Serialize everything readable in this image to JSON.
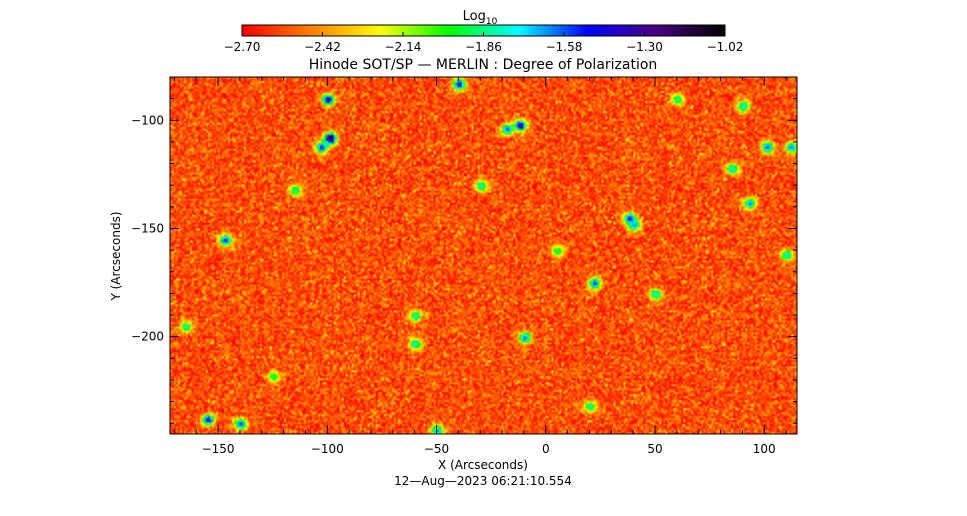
{
  "chart_data": {
    "type": "heatmap",
    "title": "Hinode SOT/SP — MERLIN : Degree of Polarization",
    "xlabel": "X (Arcseconds)",
    "ylabel": "Y (Arcseconds)",
    "timestamp": "12—Aug—2023 06:21:10.554",
    "xlim": [
      -172,
      115
    ],
    "ylim": [
      -245,
      -80
    ],
    "x_ticks": [
      -150,
      -100,
      -50,
      0,
      50,
      100
    ],
    "x_tick_labels": [
      "−150",
      "−100",
      "−50",
      "0",
      "50",
      "100"
    ],
    "y_ticks": [
      -100,
      -150,
      -200
    ],
    "y_tick_labels": [
      "−100",
      "−150",
      "−200"
    ],
    "colorbar": {
      "title_base": "Log",
      "title_sub": "10",
      "range": [
        -2.7,
        -1.02
      ],
      "ticks": [
        -2.7,
        -2.42,
        -2.14,
        -1.86,
        -1.58,
        -1.3,
        -1.02
      ],
      "tick_labels": [
        "−2.70",
        "−2.42",
        "−2.14",
        "−1.86",
        "−1.58",
        "−1.30",
        "−1.02"
      ],
      "colormap": [
        "#ff0000",
        "#ff8000",
        "#ffff00",
        "#00ff00",
        "#00ffff",
        "#0000ff",
        "#4b0082",
        "#000000"
      ]
    },
    "background_level": -2.56,
    "features": [
      {
        "x": -100,
        "y": -90,
        "value": -1.3
      },
      {
        "x": -99,
        "y": -108,
        "value": -1.05
      },
      {
        "x": -103,
        "y": -112,
        "value": -1.45
      },
      {
        "x": -40,
        "y": -83,
        "value": -1.4
      },
      {
        "x": -12,
        "y": -102,
        "value": -1.3
      },
      {
        "x": -18,
        "y": -104,
        "value": -1.55
      },
      {
        "x": -147,
        "y": -155,
        "value": -1.45
      },
      {
        "x": 38,
        "y": -145,
        "value": -1.4
      },
      {
        "x": 40,
        "y": -148,
        "value": -1.6
      },
      {
        "x": 22,
        "y": -175,
        "value": -1.5
      },
      {
        "x": -60,
        "y": -203,
        "value": -1.7
      },
      {
        "x": -10,
        "y": -200,
        "value": -1.55
      },
      {
        "x": -155,
        "y": -238,
        "value": -1.4
      },
      {
        "x": -140,
        "y": -240,
        "value": -1.5
      },
      {
        "x": -50,
        "y": -243,
        "value": -1.6
      },
      {
        "x": 90,
        "y": -93,
        "value": -1.7
      },
      {
        "x": 101,
        "y": -112,
        "value": -1.5
      },
      {
        "x": 112,
        "y": -112,
        "value": -1.6
      },
      {
        "x": 93,
        "y": -138,
        "value": -1.6
      },
      {
        "x": 85,
        "y": -122,
        "value": -1.7
      },
      {
        "x": -60,
        "y": -190,
        "value": -1.75
      },
      {
        "x": -30,
        "y": -130,
        "value": -1.75
      },
      {
        "x": 20,
        "y": -232,
        "value": -1.8
      },
      {
        "x": 50,
        "y": -180,
        "value": -1.75
      },
      {
        "x": -115,
        "y": -132,
        "value": -1.8
      },
      {
        "x": -165,
        "y": -195,
        "value": -1.8
      },
      {
        "x": 60,
        "y": -90,
        "value": -1.8
      },
      {
        "x": 110,
        "y": -162,
        "value": -1.7
      },
      {
        "x": -125,
        "y": -218,
        "value": -1.85
      },
      {
        "x": 5,
        "y": -160,
        "value": -1.85
      }
    ]
  }
}
